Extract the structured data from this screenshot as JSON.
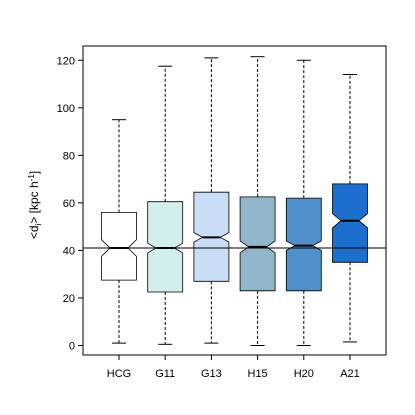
{
  "chart_data": {
    "type": "box",
    "title": "",
    "xlabel": "",
    "ylabel": "<d_i> [kpc h^-1]",
    "ylabel_parts": {
      "main": "<d",
      "sub": "i",
      "close": "> [kpc h",
      "sup": "-1",
      "end": "]"
    },
    "ylim": [
      -4,
      126
    ],
    "yticks": [
      0,
      20,
      40,
      60,
      80,
      100,
      120
    ],
    "grid": false,
    "legend": "none",
    "reference_line": 41,
    "categories": [
      "HCG",
      "G11",
      "G13",
      "H15",
      "H20",
      "A21"
    ],
    "boxes": [
      {
        "name": "HCG",
        "whisker_low": 1,
        "q1": 27.5,
        "notch_low": 37.5,
        "median": 41,
        "notch_high": 44.5,
        "q3": 56,
        "whisker_high": 95,
        "color": "#ffffff"
      },
      {
        "name": "G11",
        "whisker_low": 0.5,
        "q1": 22.5,
        "notch_low": 39,
        "median": 41,
        "notch_high": 43,
        "q3": 60.5,
        "whisker_high": 117.5,
        "color": "#d3eeee"
      },
      {
        "name": "G13",
        "whisker_low": 1,
        "q1": 27,
        "notch_low": 43.5,
        "median": 45.5,
        "notch_high": 47.5,
        "q3": 64.5,
        "whisker_high": 121,
        "color": "#c9ddf6"
      },
      {
        "name": "H15",
        "whisker_low": 0,
        "q1": 23,
        "notch_low": 39,
        "median": 41.5,
        "notch_high": 44,
        "q3": 62.5,
        "whisker_high": 121.5,
        "color": "#91b6cb"
      },
      {
        "name": "H20",
        "whisker_low": 0,
        "q1": 23,
        "notch_low": 40,
        "median": 42,
        "notch_high": 44,
        "q3": 62,
        "whisker_high": 120,
        "color": "#4f8fca"
      },
      {
        "name": "A21",
        "whisker_low": 1.5,
        "q1": 35,
        "notch_low": 49.5,
        "median": 52.5,
        "notch_high": 55.5,
        "q3": 68,
        "whisker_high": 114,
        "color": "#1c6fcc"
      }
    ]
  }
}
